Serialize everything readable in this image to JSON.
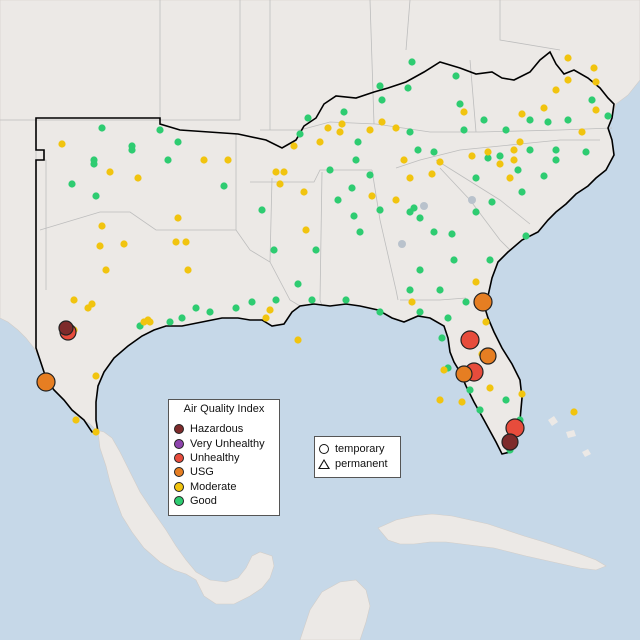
{
  "legend": {
    "title": "Air Quality Index",
    "categories": [
      {
        "label": "Hazardous",
        "color": "#7e2b2b"
      },
      {
        "label": "Very Unhealthy",
        "color": "#8e44ad"
      },
      {
        "label": "Unhealthy",
        "color": "#e74c3c"
      },
      {
        "label": "USG",
        "color": "#e67e22"
      },
      {
        "label": "Moderate",
        "color": "#f1c40f"
      },
      {
        "label": "Good",
        "color": "#2ecc71"
      }
    ]
  },
  "monitor_types": {
    "temporary": "temporary",
    "permanent": "permanent"
  },
  "colors": {
    "water": "#c6d8e8",
    "land": "#ece9e6",
    "state_border": "#bdbdbd",
    "highlight_border": "#000000",
    "no_data": "#b9c2cc"
  }
}
